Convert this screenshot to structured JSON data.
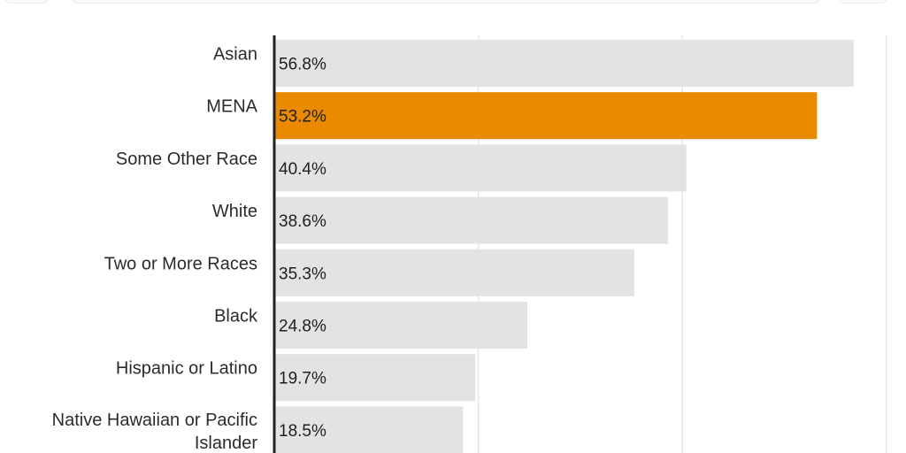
{
  "chart_data": {
    "type": "bar",
    "orientation": "horizontal",
    "categories": [
      "Asian",
      "MENA",
      "Some Other Race",
      "White",
      "Two or More Races",
      "Black",
      "Hispanic or Latino",
      "Native Hawaiian or Pacific Islander"
    ],
    "values": [
      56.8,
      53.2,
      40.4,
      38.6,
      35.3,
      24.8,
      19.7,
      18.5
    ],
    "value_labels": [
      "56.8%",
      "53.2%",
      "40.4%",
      "38.6%",
      "35.3%",
      "24.8%",
      "19.7%",
      "18.5%"
    ],
    "highlight_category": "MENA",
    "colors": {
      "bar": "#e3e3e3",
      "highlight": "#e98a00",
      "axis": "#222222",
      "grid": "#e6e6e6"
    },
    "xlim": [
      0,
      60
    ],
    "grid": true
  }
}
